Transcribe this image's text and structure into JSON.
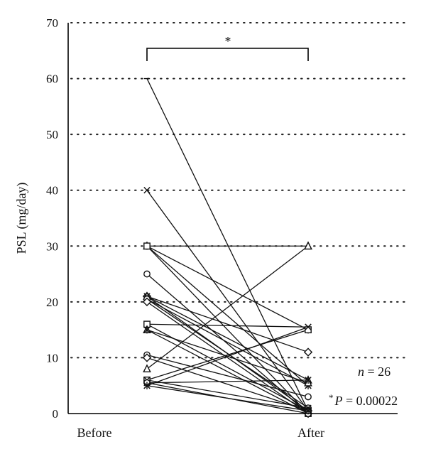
{
  "chart_data": {
    "type": "line",
    "ylabel": "PSL (mg/day)",
    "xlabel": "",
    "categories": [
      "Before",
      "After"
    ],
    "ylim": [
      0,
      70
    ],
    "yticks": [
      0,
      10,
      20,
      30,
      40,
      50,
      60,
      70
    ],
    "grid": true,
    "series": [
      {
        "values": [
          60,
          0.5
        ],
        "marker": "minus"
      },
      {
        "values": [
          40,
          0.5
        ],
        "marker": "x"
      },
      {
        "values": [
          30,
          30
        ],
        "marker": "triangle"
      },
      {
        "values": [
          30,
          15
        ],
        "marker": "star"
      },
      {
        "values": [
          30,
          5
        ],
        "marker": "x"
      },
      {
        "values": [
          30,
          0
        ],
        "marker": "square"
      },
      {
        "values": [
          25,
          0
        ],
        "marker": "circle"
      },
      {
        "values": [
          21,
          11
        ],
        "marker": "diamond"
      },
      {
        "values": [
          21,
          6
        ],
        "marker": "triangle"
      },
      {
        "values": [
          21,
          0.5
        ],
        "marker": "x"
      },
      {
        "values": [
          20.5,
          5
        ],
        "marker": "star"
      },
      {
        "values": [
          20.5,
          1
        ],
        "marker": "circle"
      },
      {
        "values": [
          20,
          0
        ],
        "marker": "diamond"
      },
      {
        "values": [
          16,
          15.5
        ],
        "marker": "x"
      },
      {
        "values": [
          16,
          0.5
        ],
        "marker": "square"
      },
      {
        "values": [
          15,
          5.5
        ],
        "marker": "triangle"
      },
      {
        "values": [
          15,
          0
        ],
        "marker": "star"
      },
      {
        "values": [
          10.5,
          3
        ],
        "marker": "circle"
      },
      {
        "values": [
          10,
          0.5
        ],
        "marker": "diamond"
      },
      {
        "values": [
          8,
          30
        ],
        "marker": "triangle"
      },
      {
        "values": [
          6,
          15
        ],
        "marker": "square"
      },
      {
        "values": [
          6,
          1
        ],
        "marker": "x"
      },
      {
        "values": [
          5.5,
          6
        ],
        "marker": "star"
      },
      {
        "values": [
          5.5,
          0
        ],
        "marker": "circle"
      },
      {
        "values": [
          5,
          15.5
        ],
        "marker": "x"
      },
      {
        "values": [
          5,
          0.5
        ],
        "marker": "star"
      }
    ],
    "annotations": {
      "significance_mark": "*",
      "n_label_var": "n",
      "n_label_rest": " = 26",
      "p_label_star": "*",
      "p_label_var": "P",
      "p_label_rest": " = 0.00022"
    }
  }
}
